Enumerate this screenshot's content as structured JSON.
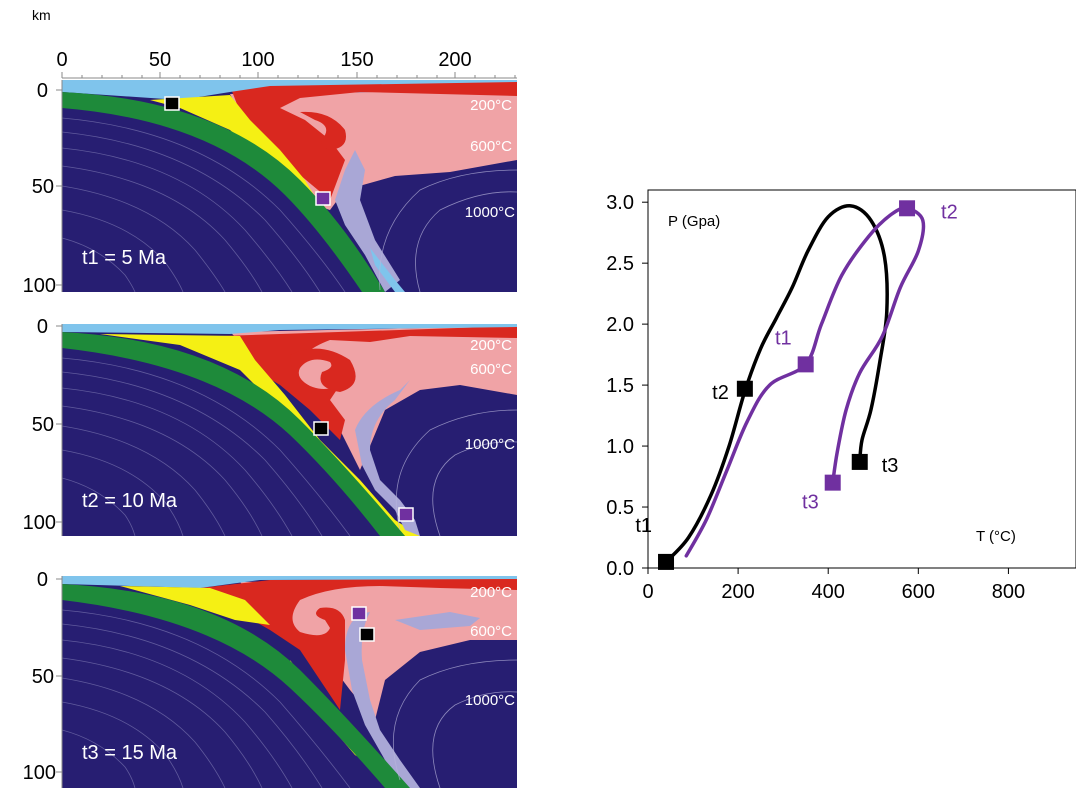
{
  "depth_axis": {
    "unit": "km",
    "x_ticks": [
      "0",
      "50",
      "100",
      "150",
      "200"
    ],
    "y_ticks": [
      "0",
      "50",
      "100"
    ]
  },
  "panels": [
    {
      "label": "t1 = 5 Ma",
      "isotherms": [
        "200°C",
        "600°C",
        "1000°C"
      ]
    },
    {
      "label": "t2 = 10 Ma",
      "isotherms": [
        "200°C",
        "600°C",
        "1000°C"
      ]
    },
    {
      "label": "t3 = 15 Ma",
      "isotherms": [
        "200°C",
        "600°C",
        "1000°C"
      ]
    }
  ],
  "colors": {
    "mantle": "#271E72",
    "slab_crust": "#1E8A3A",
    "sediment": "#F5F014",
    "water": "#7FC4EC",
    "wedge_hot": "#D9281F",
    "wedge_warm": "#F0A3A6",
    "channel": "#A9A7D6",
    "black_marker": "#000000",
    "purple_marker": "#7030A0"
  },
  "chart_data": {
    "type": "line",
    "ylabel": "P (Gpa)",
    "xlabel": "T (°C)",
    "xlim": [
      0,
      950
    ],
    "ylim": [
      0,
      3.1
    ],
    "x_ticks": [
      "0",
      "200",
      "400",
      "600",
      "800"
    ],
    "y_ticks": [
      "0.0",
      "0.5",
      "1.0",
      "1.5",
      "2.0",
      "2.5",
      "3.0"
    ],
    "series": [
      {
        "color": "#000000",
        "points": [
          [
            40,
            0.05
          ],
          [
            90,
            0.25
          ],
          [
            140,
            0.6
          ],
          [
            180,
            1.0
          ],
          [
            215,
            1.45
          ],
          [
            250,
            1.8
          ],
          [
            285,
            2.05
          ],
          [
            320,
            2.3
          ],
          [
            355,
            2.6
          ],
          [
            400,
            2.88
          ],
          [
            450,
            2.97
          ],
          [
            495,
            2.85
          ],
          [
            525,
            2.55
          ],
          [
            530,
            2.1
          ],
          [
            515,
            1.7
          ],
          [
            495,
            1.3
          ],
          [
            475,
            1.05
          ],
          [
            470,
            0.87
          ]
        ],
        "markers": [
          {
            "label": "t1",
            "x": 40,
            "y": 0.05
          },
          {
            "label": "t2",
            "x": 215,
            "y": 1.47
          },
          {
            "label": "t3",
            "x": 470,
            "y": 0.87
          }
        ]
      },
      {
        "color": "#7030A0",
        "points": [
          [
            85,
            0.1
          ],
          [
            130,
            0.4
          ],
          [
            175,
            0.8
          ],
          [
            220,
            1.2
          ],
          [
            270,
            1.5
          ],
          [
            350,
            1.67
          ],
          [
            385,
            2.0
          ],
          [
            430,
            2.4
          ],
          [
            490,
            2.72
          ],
          [
            540,
            2.9
          ],
          [
            575,
            2.95
          ],
          [
            610,
            2.85
          ],
          [
            600,
            2.6
          ],
          [
            560,
            2.3
          ],
          [
            520,
            1.9
          ],
          [
            470,
            1.6
          ],
          [
            440,
            1.3
          ],
          [
            420,
            0.95
          ],
          [
            410,
            0.7
          ]
        ],
        "markers": [
          {
            "label": "t1",
            "x": 350,
            "y": 1.67
          },
          {
            "label": "t2",
            "x": 575,
            "y": 2.95
          },
          {
            "label": "t3",
            "x": 410,
            "y": 0.7
          }
        ]
      }
    ]
  }
}
